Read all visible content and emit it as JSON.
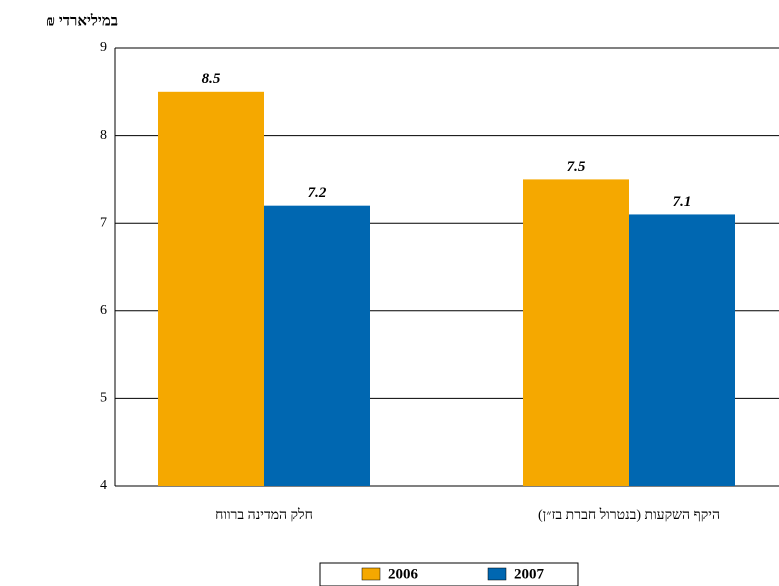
{
  "chart_data": {
    "type": "bar",
    "y_axis_label": "במיליארדי ₪",
    "categories": [
      "חלק המדינה ברווח",
      "היקף השקעות (בנטרול חברת בז״ן)"
    ],
    "series": [
      {
        "name": "2006",
        "color": "#f5a800",
        "values": [
          8.5,
          7.5
        ]
      },
      {
        "name": "2007",
        "color": "#0067b1",
        "values": [
          7.2,
          7.1
        ]
      }
    ],
    "ylim": [
      4,
      9
    ],
    "yticks": [
      4,
      5,
      6,
      7,
      8,
      9
    ],
    "grid": true
  }
}
